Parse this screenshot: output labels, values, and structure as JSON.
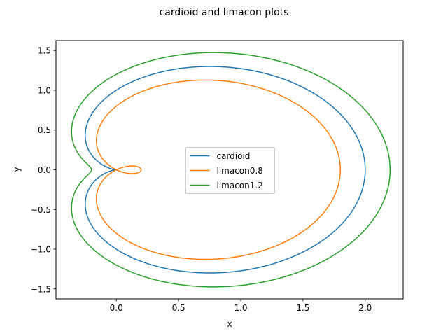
{
  "chart_data": {
    "type": "line",
    "title": "cardioid and limacon plots",
    "xlabel": "x",
    "ylabel": "y",
    "xlim": [
      -0.485,
      2.305
    ],
    "ylim": [
      -1.625,
      1.625
    ],
    "xticks": [
      0.0,
      0.5,
      1.0,
      1.5,
      2.0
    ],
    "xtick_labels": [
      "0.0",
      "0.5",
      "1.0",
      "1.5",
      "2.0"
    ],
    "yticks": [
      -1.5,
      -1.0,
      -0.5,
      0.0,
      0.5,
      1.0,
      1.5
    ],
    "ytick_labels": [
      "−1.5",
      "−1.0",
      "−0.5",
      "0.0",
      "0.5",
      "1.0",
      "1.5"
    ],
    "grid": false,
    "legend_position": "center",
    "series": [
      {
        "name": "cardioid",
        "color": "#1f77b4",
        "equation": "r = 1 + cos(theta)",
        "a": 1.0,
        "b": 1.0
      },
      {
        "name": "limacon0.8",
        "color": "#ff7f0e",
        "equation": "r = 0.8 + cos(theta)",
        "a": 0.8,
        "b": 1.0
      },
      {
        "name": "limacon1.2",
        "color": "#2ca02c",
        "equation": "r = 1.2 + cos(theta)",
        "a": 1.2,
        "b": 1.0
      }
    ]
  }
}
